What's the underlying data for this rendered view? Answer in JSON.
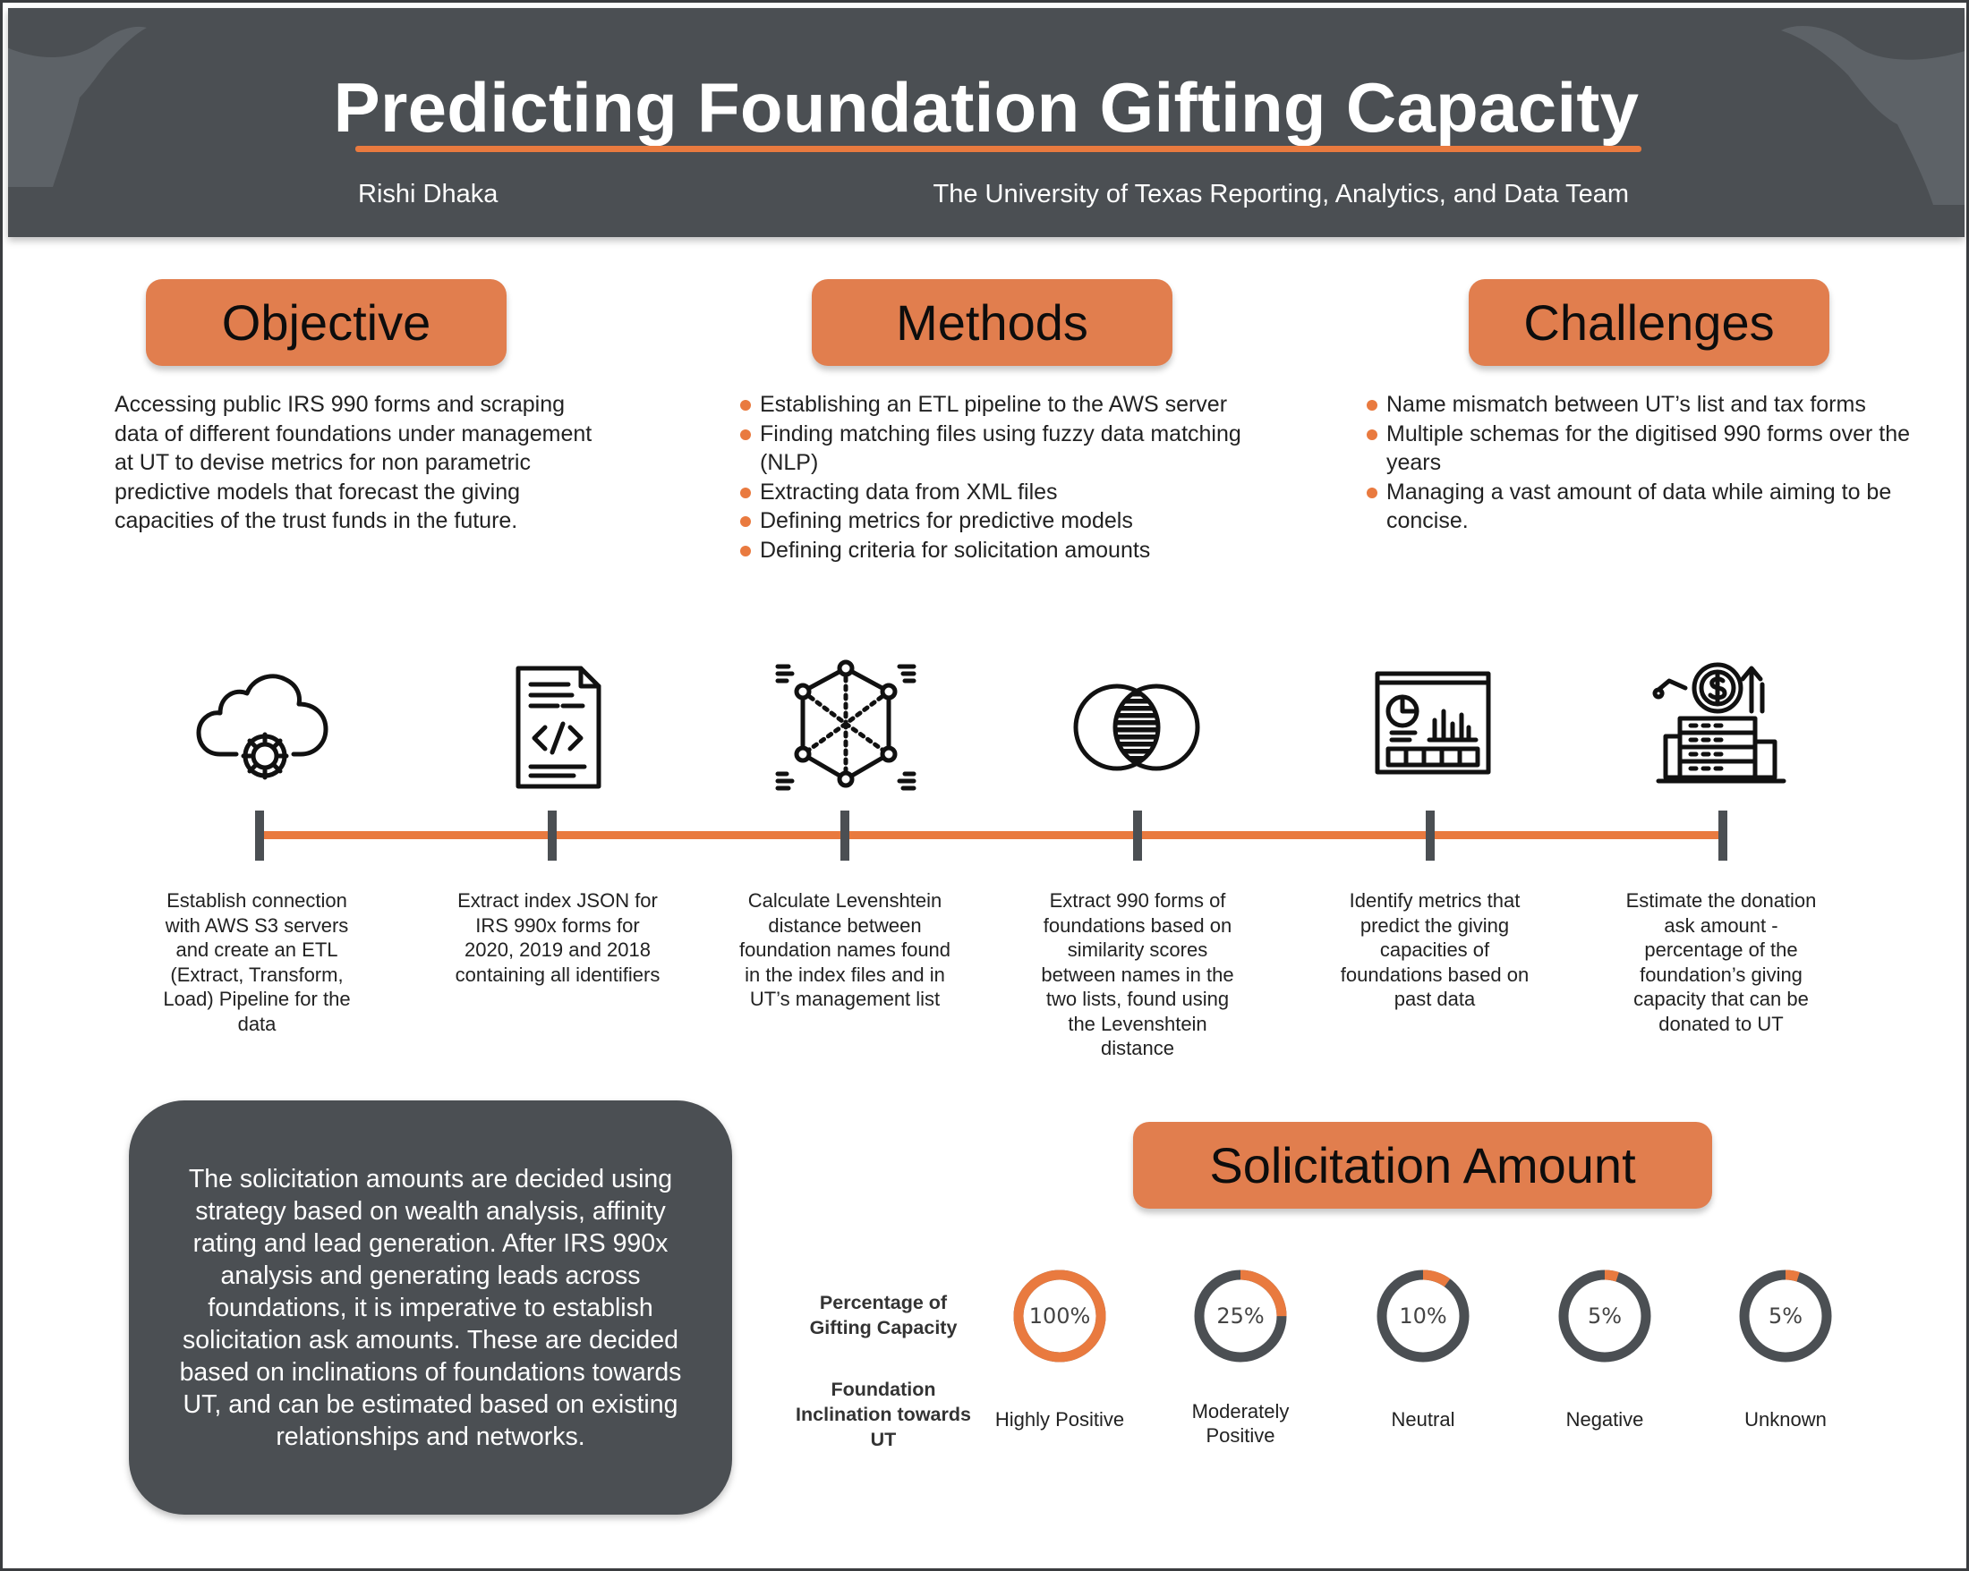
{
  "header": {
    "title": "Predicting Foundation Gifting Capacity",
    "author": "Rishi Dhaka",
    "organization": "The University of Texas Reporting, Analytics, and Data Team"
  },
  "objective": {
    "heading": "Objective",
    "text": "Accessing public IRS 990 forms and scraping data of different foundations under management at UT to devise metrics for non parametric predictive models that forecast the giving capacities of the trust funds in the future."
  },
  "methods": {
    "heading": "Methods",
    "items": [
      "Establishing an ETL pipeline to the AWS server",
      "Finding matching files using fuzzy data matching (NLP)",
      "Extracting data from XML files",
      "Defining metrics for predictive models",
      "Defining criteria for solicitation amounts"
    ]
  },
  "challenges": {
    "heading": "Challenges",
    "items": [
      "Name mismatch between UT’s list and tax forms",
      "Multiple schemas for the digitised 990 forms over the years",
      "Managing a vast amount of data while aiming to be concise."
    ]
  },
  "timeline": {
    "steps": [
      {
        "icon": "cloud-gear-icon",
        "text": "Establish connection with AWS S3 servers and create an ETL (Extract, Transform, Load) Pipeline for the data"
      },
      {
        "icon": "code-file-icon",
        "text": "Extract index JSON for IRS 990x forms for 2020, 2019 and 2018 containing all identifiers"
      },
      {
        "icon": "data-cube-icon",
        "text": "Calculate Levenshtein distance between foundation names found in the index files and in UT’s management list"
      },
      {
        "icon": "venn-intersection-icon",
        "text": "Extract 990 forms of foundations based on similarity scores between names in the two lists, found using the Levenshtein distance"
      },
      {
        "icon": "analytics-dashboard-icon",
        "text": "Identify metrics that predict the giving capacities of foundations based on past data"
      },
      {
        "icon": "money-growth-icon",
        "text": "Estimate the donation ask amount - percentage of the foundation’s giving capacity that can be donated to UT"
      }
    ]
  },
  "solicitation": {
    "note": "The solicitation amounts are decided using strategy based on wealth analysis, affinity rating and lead generation. After IRS 990x analysis and generating leads across foundations, it is imperative to establish solicitation ask amounts. These are decided based on inclinations of foundations towards UT, and can be estimated based on existing relationships and networks.",
    "heading": "Solicitation Amount",
    "row_label_percentage": "Percentage of Gifting Capacity",
    "row_label_inclination": "Foundation Inclination towards UT",
    "items": [
      {
        "percent": 100,
        "display": "100%",
        "label": "Highly Positive"
      },
      {
        "percent": 25,
        "display": "25%",
        "label": "Moderately Positive"
      },
      {
        "percent": 10,
        "display": "10%",
        "label": "Neutral"
      },
      {
        "percent": 5,
        "display": "5%",
        "label": "Negative"
      },
      {
        "percent": 5,
        "display": "5%",
        "label": "Unknown"
      }
    ]
  },
  "colors": {
    "accent": "#e97a3f",
    "pill": "#e17e4e",
    "dark": "#4b4f53",
    "longhorn": "#5d6267"
  }
}
